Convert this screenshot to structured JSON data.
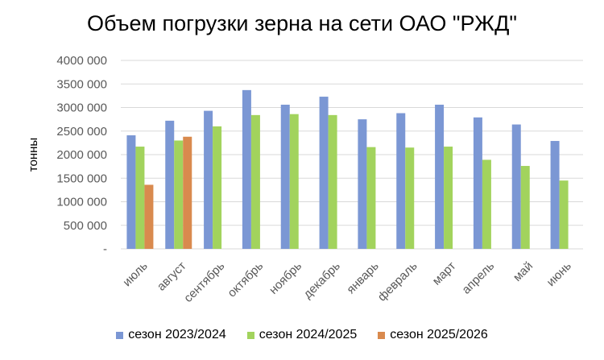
{
  "chart_data": {
    "type": "bar",
    "title": "Объем погрузки зерна на сети ОАО \"РЖД\"",
    "xlabel": "",
    "ylabel": "тонны",
    "ylim": [
      0,
      4000000
    ],
    "yticks": [
      0,
      500000,
      1000000,
      1500000,
      2000000,
      2500000,
      3000000,
      3500000,
      4000000
    ],
    "ytick_labels": [
      "-",
      "500 000",
      "1000 000",
      "1500 000",
      "2000 000",
      "2500 000",
      "3000 000",
      "3500 000",
      "4000 000"
    ],
    "grid": true,
    "legend_position": "bottom",
    "categories": [
      "июль",
      "август",
      "сентябрь",
      "октябрь",
      "ноябрь",
      "декабрь",
      "январь",
      "февраль",
      "март",
      "апрель",
      "май",
      "июнь"
    ],
    "series": [
      {
        "name": "сезон 2023/2024",
        "color": "#7b97d4",
        "values": [
          2410000,
          2720000,
          2930000,
          3370000,
          3060000,
          3230000,
          2750000,
          2880000,
          3060000,
          2790000,
          2640000,
          2290000
        ]
      },
      {
        "name": "сезон 2024/2025",
        "color": "#a2d35d",
        "values": [
          2170000,
          2300000,
          2600000,
          2840000,
          2860000,
          2840000,
          2160000,
          2150000,
          2170000,
          1890000,
          1760000,
          1450000
        ]
      },
      {
        "name": "сезон 2025/2026",
        "color": "#d98a4e",
        "values": [
          1360000,
          2380000,
          null,
          null,
          null,
          null,
          null,
          null,
          null,
          null,
          null,
          null
        ]
      }
    ]
  }
}
